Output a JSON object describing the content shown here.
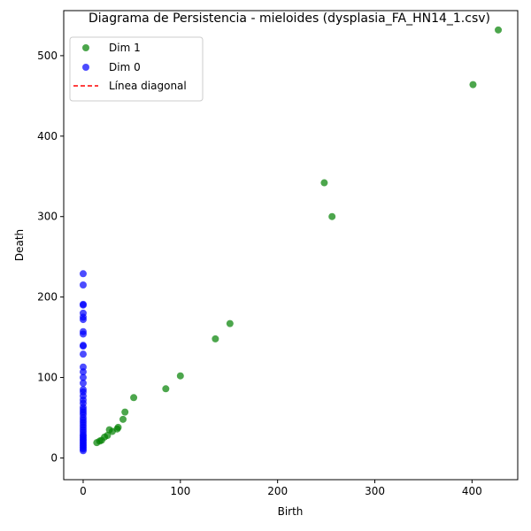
{
  "chart_data": {
    "type": "scatter",
    "title": "Diagrama de Persistencia - mieloides (dysplasia_FA_HN14_1.csv)",
    "xlabel": "Birth",
    "ylabel": "Death",
    "xlim": [
      -20,
      447
    ],
    "ylim": [
      -27,
      556
    ],
    "xticks": [
      0,
      100,
      200,
      300,
      400
    ],
    "yticks": [
      0,
      100,
      200,
      300,
      400,
      500
    ],
    "grid": false,
    "legend_position": "top-left",
    "series": [
      {
        "name": "Dim 1",
        "color": "#008000",
        "marker": "circle",
        "points": [
          [
            427,
            532
          ],
          [
            401,
            464
          ],
          [
            248,
            342
          ],
          [
            256,
            300
          ],
          [
            151,
            167
          ],
          [
            136,
            148
          ],
          [
            100,
            102
          ],
          [
            85,
            86
          ],
          [
            52,
            75
          ],
          [
            43,
            57
          ],
          [
            41,
            48
          ],
          [
            36,
            38
          ],
          [
            35,
            36
          ],
          [
            27,
            35
          ],
          [
            30,
            33
          ],
          [
            25,
            28
          ],
          [
            22,
            26
          ],
          [
            19,
            22
          ],
          [
            17,
            21
          ],
          [
            14,
            19
          ]
        ]
      },
      {
        "name": "Dim 0",
        "color": "#0000ff",
        "marker": "circle",
        "points": [
          [
            0,
            229
          ],
          [
            0,
            215
          ],
          [
            0,
            191
          ],
          [
            0,
            190
          ],
          [
            0,
            180
          ],
          [
            0,
            175
          ],
          [
            0,
            172
          ],
          [
            0,
            157
          ],
          [
            0,
            154
          ],
          [
            0,
            140
          ],
          [
            0,
            139
          ],
          [
            0,
            129
          ],
          [
            0,
            113
          ],
          [
            0,
            107
          ],
          [
            0,
            100
          ],
          [
            0,
            93
          ],
          [
            0,
            85
          ],
          [
            0,
            82
          ],
          [
            0,
            77
          ],
          [
            0,
            72
          ],
          [
            0,
            68
          ],
          [
            0,
            63
          ],
          [
            0,
            60
          ],
          [
            0,
            57
          ],
          [
            0,
            54
          ],
          [
            0,
            50
          ],
          [
            0,
            47
          ],
          [
            0,
            44
          ],
          [
            0,
            41
          ],
          [
            0,
            38
          ],
          [
            0,
            35
          ],
          [
            0,
            32
          ],
          [
            0,
            29
          ],
          [
            0,
            27
          ],
          [
            0,
            25
          ],
          [
            0,
            23
          ],
          [
            0,
            21
          ],
          [
            0,
            19
          ],
          [
            0,
            17
          ],
          [
            0,
            15
          ],
          [
            0,
            13
          ],
          [
            0,
            11
          ],
          [
            0,
            9
          ]
        ]
      },
      {
        "name": "Línea diagonal",
        "color": "#ff0000",
        "marker": "dashed-line",
        "points": []
      }
    ]
  }
}
